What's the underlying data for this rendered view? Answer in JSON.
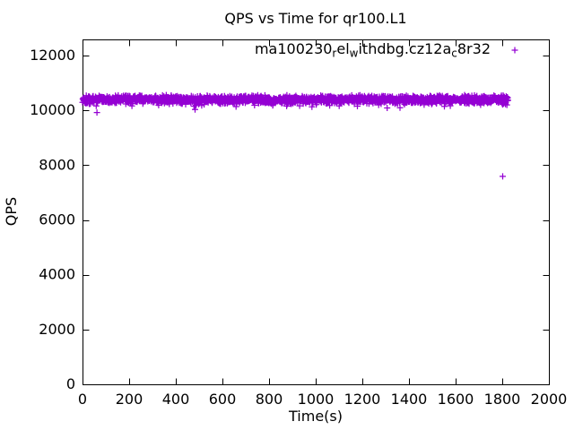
{
  "figure": {
    "background": "#ffffff",
    "text_color": "#000000",
    "frame_color": "#000000"
  },
  "chart_data": {
    "type": "scatter",
    "title": "QPS vs Time for qr100.L1",
    "xlabel": "Time(s)",
    "ylabel": "QPS",
    "xlim": [
      0,
      2000
    ],
    "ylim": [
      0,
      12590
    ],
    "xticks": [
      0,
      200,
      400,
      600,
      800,
      1000,
      1200,
      1400,
      1600,
      1800,
      2000
    ],
    "yticks": [
      0,
      2000,
      4000,
      6000,
      8000,
      10000,
      12000
    ],
    "grid": false,
    "legend_position": "top-right-inside",
    "marker": "plus",
    "series": [
      {
        "name": "ma100230_rel_withdbg.cz12a_c8r32",
        "name_segments": [
          {
            "text": "ma100230",
            "sub": false
          },
          {
            "text": "r",
            "sub": true
          },
          {
            "text": "el",
            "sub": false
          },
          {
            "text": "w",
            "sub": true
          },
          {
            "text": "ithdbg.cz12a",
            "sub": false
          },
          {
            "text": "c",
            "sub": true
          },
          {
            "text": "8r32",
            "sub": false
          }
        ],
        "color": "#9400d3",
        "band": {
          "description": "dense steady-state band of per-second QPS samples",
          "x_start": 0,
          "x_end": 1825,
          "n_points": 1800,
          "y_mean": 10400,
          "y_spread": 170,
          "straggler_chance": 0.05,
          "straggler_extra_drop_min": 80,
          "straggler_extra_drop_max": 230,
          "seed": 1337
        },
        "outliers": [
          {
            "x": 62,
            "y": 9920
          },
          {
            "x": 1802,
            "y": 7590
          }
        ]
      }
    ]
  }
}
